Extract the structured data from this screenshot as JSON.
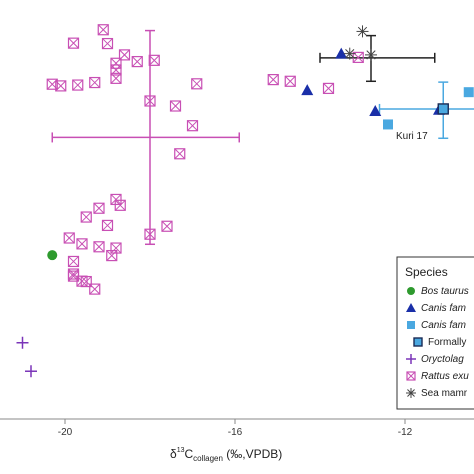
{
  "chart_data": {
    "type": "scatter",
    "xlabel_prefix": "δ",
    "xlabel_sup": "13",
    "xlabel_main": "C",
    "xlabel_sub": "collagen",
    "xlabel_suffix": " (‰,VPDB)",
    "xlim": [
      -20.6,
      -10.2
    ],
    "x_ticks": [
      {
        "value": -20,
        "label": "-20"
      },
      {
        "value": -16,
        "label": "-16"
      },
      {
        "value": -12,
        "label": "-12"
      }
    ],
    "ylim": [
      0,
      1
    ],
    "annotation": {
      "text": "Kuri 17",
      "x": -11.8,
      "y": 0.66
    },
    "legend": {
      "title": "Species",
      "position": "bottom-right",
      "entries": [
        {
          "marker": "circle",
          "color": "#2e9a2e",
          "label": "Bos taurus",
          "italic": true
        },
        {
          "marker": "triangle",
          "color": "#1a2fa8",
          "label": "Canis fam",
          "italic": true
        },
        {
          "marker": "square",
          "color": "#4aa8e0",
          "label": "Canis fam",
          "italic": true
        },
        {
          "marker": "square-outline",
          "color": "#4aa8e0",
          "label": "Formally",
          "italic": false,
          "indent": true
        },
        {
          "marker": "plus",
          "color": "#7a34b8",
          "label": "Oryctolag",
          "italic": true
        },
        {
          "marker": "xbox",
          "color": "#c84fb4",
          "label": "Rattus exu",
          "italic": true
        },
        {
          "marker": "asterisk",
          "color": "#444444",
          "label": "Sea mamr",
          "italic": false
        }
      ]
    },
    "series": [
      {
        "name": "Rattus exulans",
        "marker": "xbox",
        "color": "#c84fb4",
        "points": [
          [
            -19.1,
            0.929
          ],
          [
            -19.0,
            0.896
          ],
          [
            -19.8,
            0.897
          ],
          [
            -18.6,
            0.869
          ],
          [
            -18.8,
            0.849
          ],
          [
            -18.8,
            0.833
          ],
          [
            -18.3,
            0.853
          ],
          [
            -17.9,
            0.856
          ],
          [
            -19.7,
            0.797
          ],
          [
            -20.3,
            0.799
          ],
          [
            -20.1,
            0.795
          ],
          [
            -19.3,
            0.803
          ],
          [
            -18.8,
            0.813
          ],
          [
            -18.0,
            0.759
          ],
          [
            -17.4,
            0.747
          ],
          [
            -17.0,
            0.7
          ],
          [
            -16.9,
            0.8
          ],
          [
            -17.3,
            0.633
          ],
          [
            -15.1,
            0.81
          ],
          [
            -14.7,
            0.806
          ],
          [
            -13.8,
            0.789
          ],
          [
            -13.1,
            0.863
          ],
          [
            -18.8,
            0.524
          ],
          [
            -18.7,
            0.51
          ],
          [
            -19.2,
            0.503
          ],
          [
            -19.5,
            0.482
          ],
          [
            -19.0,
            0.462
          ],
          [
            -18.0,
            0.441
          ],
          [
            -17.6,
            0.46
          ],
          [
            -19.9,
            0.432
          ],
          [
            -19.6,
            0.418
          ],
          [
            -19.2,
            0.411
          ],
          [
            -18.8,
            0.408
          ],
          [
            -18.9,
            0.39
          ],
          [
            -19.8,
            0.376
          ],
          [
            -19.8,
            0.346
          ],
          [
            -19.6,
            0.329
          ],
          [
            -19.8,
            0.341
          ],
          [
            -19.5,
            0.328
          ],
          [
            -19.3,
            0.31
          ]
        ]
      },
      {
        "name": "Canis familiaris (triangle)",
        "marker": "triangle",
        "color": "#1a2fa8",
        "points": [
          [
            -13.5,
            0.872
          ],
          [
            -14.3,
            0.785
          ],
          [
            -12.7,
            0.735
          ],
          [
            -11.2,
            0.738
          ]
        ]
      },
      {
        "name": "Canis familiaris (square)",
        "marker": "square",
        "color": "#4aa8e0",
        "points": [
          [
            -12.4,
            0.703
          ],
          [
            -10.5,
            0.78
          ],
          [
            -10.1,
            0.782
          ]
        ]
      },
      {
        "name": "Formally",
        "marker": "square-outline",
        "color": "#4aa8e0",
        "points": [
          [
            -11.1,
            0.74
          ]
        ]
      },
      {
        "name": "Bos taurus",
        "marker": "circle",
        "color": "#2e9a2e",
        "points": [
          [
            -20.3,
            0.391
          ]
        ]
      },
      {
        "name": "Oryctolagus",
        "marker": "plus",
        "color": "#7a34b8",
        "points": [
          [
            -21.0,
            0.182
          ],
          [
            -20.8,
            0.114
          ]
        ]
      },
      {
        "name": "Sea mammal",
        "marker": "asterisk",
        "color": "#444444",
        "points": [
          [
            -13.0,
            0.925
          ],
          [
            -13.3,
            0.872
          ],
          [
            -12.8,
            0.869
          ]
        ]
      }
    ],
    "error_bars": [
      {
        "color": "#c84fb4",
        "cx": -18.0,
        "cy": 0.672,
        "x": [
          -20.3,
          -15.9
        ],
        "y": [
          0.417,
          0.927
        ]
      },
      {
        "color": "#222222",
        "cx": -12.8,
        "cy": 0.862,
        "x": [
          -14.0,
          -11.3
        ],
        "y": [
          0.806,
          0.915
        ]
      },
      {
        "color": "#4aa8e0",
        "cx": -11.1,
        "cy": 0.74,
        "x": [
          -12.6,
          -10.2
        ],
        "y": [
          0.67,
          0.804
        ]
      }
    ]
  }
}
